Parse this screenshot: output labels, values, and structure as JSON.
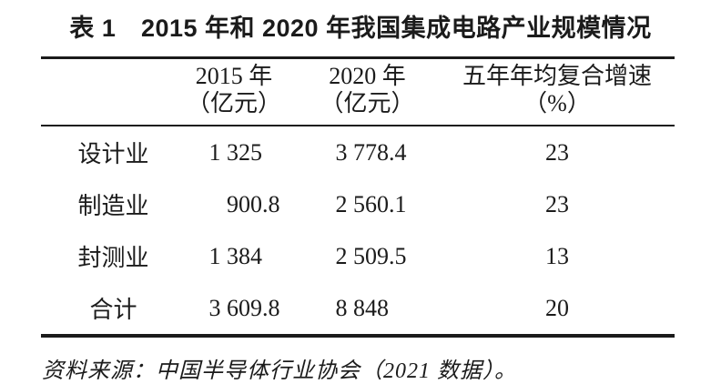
{
  "title": "表 1　2015 年和 2020 年我国集成电路产业规模情况",
  "header": {
    "col_label": "",
    "col_2015_line1": "2015 年",
    "col_2015_line2": "（亿元）",
    "col_2020_line1": "2020 年",
    "col_2020_line2": "（亿元）",
    "col_cagr_line1": "五年年均复合增速",
    "col_cagr_line2": "（%）"
  },
  "rows": [
    {
      "label": "设计业",
      "v2015_int": "1 325",
      "v2015_dec": "",
      "v2020_int": "3 778",
      "v2020_dec": ".4",
      "cagr": "23"
    },
    {
      "label": "制造业",
      "v2015_int": "900",
      "v2015_dec": ".8",
      "v2020_int": "2 560",
      "v2020_dec": ".1",
      "cagr": "23"
    },
    {
      "label": "封测业",
      "v2015_int": "1 384",
      "v2015_dec": "",
      "v2020_int": "2 509",
      "v2020_dec": ".5",
      "cagr": "13"
    },
    {
      "label": "合计",
      "v2015_int": "3 609",
      "v2015_dec": ".8",
      "v2020_int": "8 848",
      "v2020_dec": "",
      "cagr": "20"
    }
  ],
  "source_note": "资料来源：中国半导体行业协会（2021 数据）。",
  "colors": {
    "text": "#1b1b1b",
    "background": "#ffffff"
  },
  "chart_data": {
    "type": "table",
    "title": "表 1　2015 年和 2020 年我国集成电路产业规模情况",
    "columns": [
      "",
      "2015 年（亿元）",
      "2020 年（亿元）",
      "五年年均复合增速（%）"
    ],
    "rows": [
      [
        "设计业",
        1325,
        3778.4,
        23
      ],
      [
        "制造业",
        900.8,
        2560.1,
        23
      ],
      [
        "封测业",
        1384,
        2509.5,
        13
      ],
      [
        "合计",
        3609.8,
        8848,
        20
      ]
    ],
    "source": "中国半导体行业协会（2021 数据）"
  }
}
